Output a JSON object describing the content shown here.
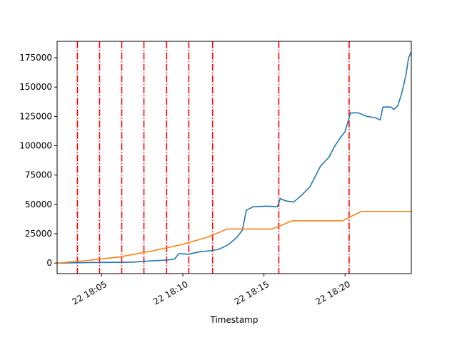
{
  "chart_data": {
    "type": "line",
    "title": "",
    "xlabel": "Timestamp",
    "ylabel": "",
    "x_type": "time",
    "xlim": [
      "2000-01-22 18:02:15",
      "2000-01-22 18:24:05"
    ],
    "ylim": [
      -9000,
      189000
    ],
    "grid": false,
    "x_ticks": [
      {
        "value": "2000-01-22 18:05:00",
        "label": "22 18:05"
      },
      {
        "value": "2000-01-22 18:10:00",
        "label": "22 18:10"
      },
      {
        "value": "2000-01-22 18:15:00",
        "label": "22 18:15"
      },
      {
        "value": "2000-01-22 18:20:00",
        "label": "22 18:20"
      }
    ],
    "y_ticks": [
      {
        "value": 0,
        "label": "0"
      },
      {
        "value": 25000,
        "label": "25000"
      },
      {
        "value": 50000,
        "label": "50000"
      },
      {
        "value": 75000,
        "label": "75000"
      },
      {
        "value": 100000,
        "label": "100000"
      },
      {
        "value": 125000,
        "label": "125000"
      },
      {
        "value": 150000,
        "label": "150000"
      },
      {
        "value": 175000,
        "label": "175000"
      }
    ],
    "vlines": {
      "color": "#ff0000",
      "style": "dashdot",
      "x": [
        "2000-01-22 18:03:30",
        "2000-01-22 18:04:52",
        "2000-01-22 18:06:14",
        "2000-01-22 18:07:36",
        "2000-01-22 18:09:00",
        "2000-01-22 18:10:22",
        "2000-01-22 18:11:50",
        "2000-01-22 18:15:55",
        "2000-01-22 18:20:15"
      ]
    },
    "series": [
      {
        "color": "#1f77b4",
        "points": [
          [
            "2000-01-22 18:02:15",
            0
          ],
          [
            "2000-01-22 18:04:00",
            400
          ],
          [
            "2000-01-22 18:06:00",
            600
          ],
          [
            "2000-01-22 18:07:00",
            800
          ],
          [
            "2000-01-22 18:08:00",
            1800
          ],
          [
            "2000-01-22 18:09:00",
            2500
          ],
          [
            "2000-01-22 18:09:30",
            3500
          ],
          [
            "2000-01-22 18:09:45",
            8000
          ],
          [
            "2000-01-22 18:10:20",
            7500
          ],
          [
            "2000-01-22 18:11:00",
            9500
          ],
          [
            "2000-01-22 18:11:40",
            10500
          ],
          [
            "2000-01-22 18:12:10",
            11500
          ],
          [
            "2000-01-22 18:12:30",
            13500
          ],
          [
            "2000-01-22 18:12:50",
            16000
          ],
          [
            "2000-01-22 18:13:20",
            22000
          ],
          [
            "2000-01-22 18:13:40",
            28000
          ],
          [
            "2000-01-22 18:13:55",
            45000
          ],
          [
            "2000-01-22 18:14:20",
            48000
          ],
          [
            "2000-01-22 18:15:10",
            48500
          ],
          [
            "2000-01-22 18:15:50",
            48000
          ],
          [
            "2000-01-22 18:16:00",
            55000
          ],
          [
            "2000-01-22 18:16:20",
            53000
          ],
          [
            "2000-01-22 18:16:50",
            52000
          ],
          [
            "2000-01-22 18:17:20",
            58000
          ],
          [
            "2000-01-22 18:17:50",
            65000
          ],
          [
            "2000-01-22 18:18:10",
            74000
          ],
          [
            "2000-01-22 18:18:30",
            83000
          ],
          [
            "2000-01-22 18:19:00",
            90000
          ],
          [
            "2000-01-22 18:19:20",
            99000
          ],
          [
            "2000-01-22 18:19:40",
            106000
          ],
          [
            "2000-01-22 18:20:00",
            112000
          ],
          [
            "2000-01-22 18:20:20",
            128000
          ],
          [
            "2000-01-22 18:20:50",
            128000
          ],
          [
            "2000-01-22 18:21:20",
            125000
          ],
          [
            "2000-01-22 18:21:50",
            124000
          ],
          [
            "2000-01-22 18:22:10",
            122000
          ],
          [
            "2000-01-22 18:22:20",
            133000
          ],
          [
            "2000-01-22 18:22:50",
            133000
          ],
          [
            "2000-01-22 18:23:00",
            131000
          ],
          [
            "2000-01-22 18:23:15",
            134000
          ],
          [
            "2000-01-22 18:23:30",
            145000
          ],
          [
            "2000-01-22 18:23:45",
            160000
          ],
          [
            "2000-01-22 18:23:55",
            175000
          ],
          [
            "2000-01-22 18:24:05",
            180000
          ]
        ]
      },
      {
        "color": "#ff7f0e",
        "points": [
          [
            "2000-01-22 18:02:15",
            0
          ],
          [
            "2000-01-22 18:04:00",
            2000
          ],
          [
            "2000-01-22 18:06:00",
            5000
          ],
          [
            "2000-01-22 18:08:00",
            10000
          ],
          [
            "2000-01-22 18:10:00",
            16000
          ],
          [
            "2000-01-22 18:11:30",
            22000
          ],
          [
            "2000-01-22 18:12:45",
            29000
          ],
          [
            "2000-01-22 18:15:30",
            29000
          ],
          [
            "2000-01-22 18:16:45",
            36000
          ],
          [
            "2000-01-22 18:19:50",
            36000
          ],
          [
            "2000-01-22 18:21:00",
            44000
          ],
          [
            "2000-01-22 18:24:05",
            44000
          ]
        ]
      }
    ]
  }
}
